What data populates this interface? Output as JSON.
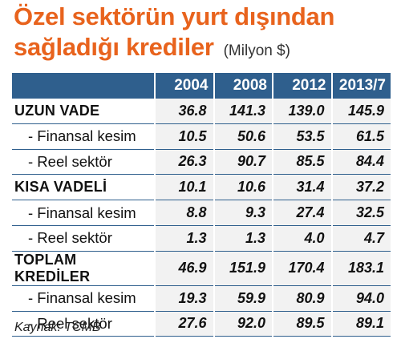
{
  "title": {
    "line1": "Özel sektörün yurt dışından",
    "line2": "sağladığı krediler",
    "unit": "(Milyon $)"
  },
  "table": {
    "columns": [
      "2004",
      "2008",
      "2012",
      "2013/7"
    ],
    "rows": [
      {
        "label": "UZUN VADE",
        "type": "group",
        "values": [
          "36.8",
          "141.3",
          "139.0",
          "145.9"
        ]
      },
      {
        "label": "- Finansal kesim",
        "type": "sub",
        "values": [
          "10.5",
          "50.6",
          "53.5",
          "61.5"
        ]
      },
      {
        "label": "- Reel sektör",
        "type": "sub",
        "values": [
          "26.3",
          "90.7",
          "85.5",
          "84.4"
        ]
      },
      {
        "label": "KISA VADELİ",
        "type": "group",
        "values": [
          "10.1",
          "10.6",
          "31.4",
          "37.2"
        ]
      },
      {
        "label": "- Finansal kesim",
        "type": "sub",
        "values": [
          "8.8",
          "9.3",
          "27.4",
          "32.5"
        ]
      },
      {
        "label": "- Reel sektör",
        "type": "sub",
        "values": [
          "1.3",
          "1.3",
          "4.0",
          "4.7"
        ]
      },
      {
        "label": "TOPLAM KREDİLER",
        "type": "group",
        "values": [
          "46.9",
          "151.9",
          "170.4",
          "183.1"
        ]
      },
      {
        "label": "- Finansal kesim",
        "type": "sub",
        "values": [
          "19.3",
          "59.9",
          "80.9",
          "94.0"
        ]
      },
      {
        "label": "- Reel sektör",
        "type": "sub",
        "values": [
          "27.6",
          "92.0",
          "89.5",
          "89.1"
        ]
      }
    ]
  },
  "source": "Kaynak: TCMB",
  "colors": {
    "title": "#e8631d",
    "header_bg": "#2f5f8d",
    "cell_bg": "#f2f2f2"
  }
}
